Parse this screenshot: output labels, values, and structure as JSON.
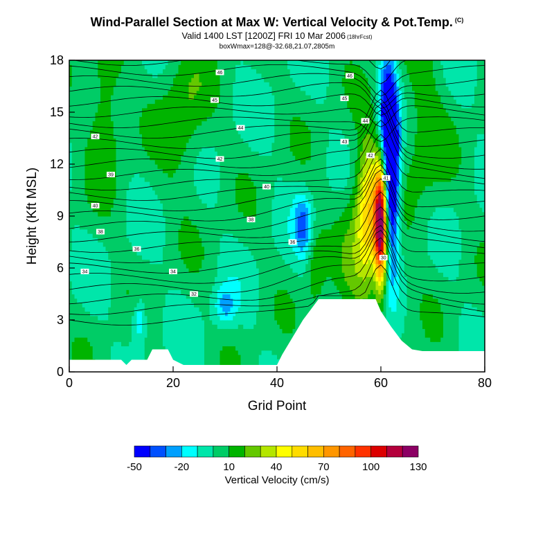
{
  "header": {
    "title": "Wind-Parallel Section at Max W: Vertical Velocity & Pot.Temp.",
    "copyright": "(C)",
    "valid": "Valid 1400 LST [1200Z] FRI 10 Mar 2006",
    "forecast": "(18hrFcst)",
    "boxinfo": "boxWmax=128@-32.68,21.07,2805m"
  },
  "chart_data": {
    "type": "contour",
    "xlabel": "Grid Point",
    "ylabel": "Height (Kft MSL)",
    "xlim": [
      0,
      80
    ],
    "ylim": [
      0,
      18
    ],
    "x_ticks": [
      0,
      20,
      40,
      60,
      80
    ],
    "y_ticks": [
      0,
      3,
      6,
      9,
      12,
      15,
      18
    ],
    "colorbar": {
      "title": "Vertical Velocity (cm/s)",
      "levels": [
        -50,
        -40,
        -30,
        -20,
        -10,
        0,
        10,
        20,
        30,
        40,
        50,
        60,
        70,
        80,
        90,
        100,
        110,
        120,
        130
      ],
      "tick_labels": [
        -50,
        -20,
        10,
        40,
        70,
        100,
        130
      ],
      "colors": [
        "#0000ff",
        "#0050ff",
        "#00a0ff",
        "#00ffff",
        "#00e6aa",
        "#00cc66",
        "#00b400",
        "#64c800",
        "#b4e600",
        "#ffff00",
        "#ffdc00",
        "#ffbe00",
        "#ff9600",
        "#ff6400",
        "#ff3200",
        "#dc0000",
        "#b4003c",
        "#8c0064"
      ]
    },
    "max_w": {
      "value": 128,
      "units": "cm/s",
      "x": 60,
      "height_kft": 8.5
    },
    "terrain_kft": [
      [
        0,
        0.7
      ],
      [
        10,
        0.7
      ],
      [
        11,
        0.4
      ],
      [
        12,
        0.7
      ],
      [
        15,
        0.7
      ],
      [
        16,
        1.3
      ],
      [
        19,
        1.3
      ],
      [
        20,
        0.7
      ],
      [
        22,
        0.4
      ],
      [
        40,
        0.4
      ],
      [
        41,
        1
      ],
      [
        43,
        2
      ],
      [
        45,
        3
      ],
      [
        47,
        3.8
      ],
      [
        48,
        4.2
      ],
      [
        59,
        4.2
      ],
      [
        60,
        3.5
      ],
      [
        62,
        2.6
      ],
      [
        64,
        1.8
      ],
      [
        66,
        1.3
      ],
      [
        68,
        1.2
      ],
      [
        80,
        1.2
      ]
    ],
    "theta_contour_labels": [
      {
        "text": "46",
        "x": 29,
        "h": 17.3
      },
      {
        "text": "46",
        "x": 54,
        "h": 17.1
      },
      {
        "text": "45",
        "x": 28,
        "h": 15.7
      },
      {
        "text": "45",
        "x": 53,
        "h": 15.8
      },
      {
        "text": "44",
        "x": 33,
        "h": 14.1
      },
      {
        "text": "44",
        "x": 57,
        "h": 14.5
      },
      {
        "text": "43",
        "x": 53,
        "h": 13.3
      },
      {
        "text": "42",
        "x": 5,
        "h": 13.6
      },
      {
        "text": "42",
        "x": 29,
        "h": 12.3
      },
      {
        "text": "42",
        "x": 58,
        "h": 12.5
      },
      {
        "text": "41",
        "x": 61,
        "h": 11.2
      },
      {
        "text": "40",
        "x": 38,
        "h": 10.7
      },
      {
        "text": "40",
        "x": 5,
        "h": 9.6
      },
      {
        "text": "39",
        "x": 8,
        "h": 11.4
      },
      {
        "text": "38",
        "x": 35,
        "h": 8.8
      },
      {
        "text": "38",
        "x": 6,
        "h": 8.1
      },
      {
        "text": "36",
        "x": 13,
        "h": 7.1
      },
      {
        "text": "36",
        "x": 43,
        "h": 7.5
      },
      {
        "text": "34",
        "x": 3,
        "h": 5.8
      },
      {
        "text": "34",
        "x": 20,
        "h": 5.8
      },
      {
        "text": "32",
        "x": 24,
        "h": 4.5
      },
      {
        "text": "30",
        "x": 60.5,
        "h": 6.6
      }
    ]
  }
}
